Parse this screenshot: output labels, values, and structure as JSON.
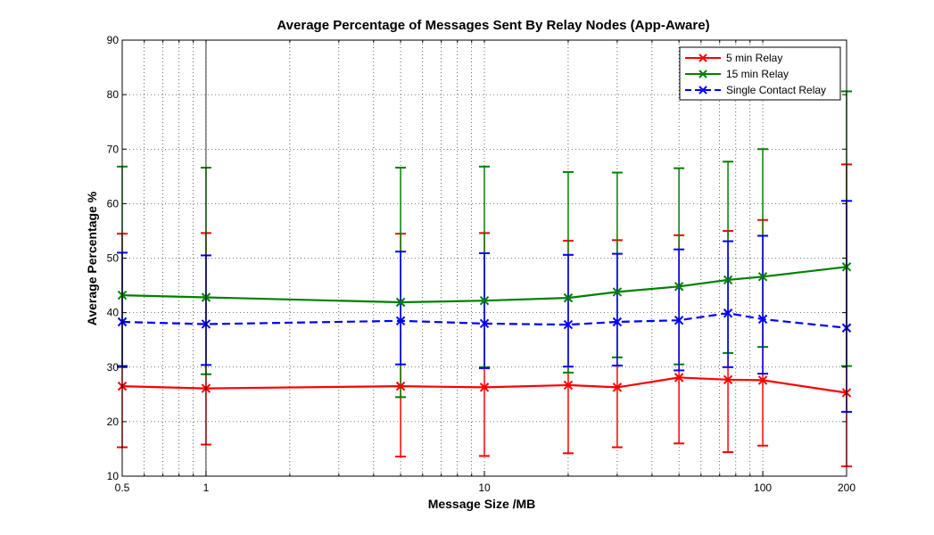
{
  "chart_data": {
    "type": "line",
    "title": "Average Percentage of Messages Sent By Relay Nodes (App-Aware)",
    "xlabel": "Message Size /MB",
    "ylabel": "Average Percentage %",
    "xscale": "log",
    "xlim": [
      0.5,
      200
    ],
    "ylim": [
      10,
      90
    ],
    "grid": "dotted",
    "legend_position": "top-right",
    "x_ticks": [
      0.5,
      1,
      10,
      100,
      200
    ],
    "x_tick_labels": [
      "0.5",
      "1",
      "10",
      "100",
      "200"
    ],
    "y_ticks": [
      10,
      20,
      30,
      40,
      50,
      60,
      70,
      80,
      90
    ],
    "y_tick_labels": [
      "10",
      "20",
      "30",
      "40",
      "50",
      "60",
      "70",
      "80",
      "90"
    ],
    "x": [
      0.5,
      1,
      5,
      10,
      20,
      30,
      50,
      75,
      100,
      200
    ],
    "series": [
      {
        "name": "5 min Relay",
        "color": "#ff0000",
        "line_style": "solid",
        "marker": "x",
        "values": [
          26.5,
          26.1,
          26.5,
          26.3,
          26.7,
          26.3,
          28.1,
          27.7,
          27.6,
          25.3
        ],
        "error_low": [
          15.3,
          15.8,
          13.6,
          13.7,
          14.2,
          15.3,
          16.0,
          14.4,
          15.6,
          11.8
        ],
        "error_high": [
          54.5,
          54.6,
          54.5,
          54.6,
          53.2,
          53.3,
          54.2,
          55.0,
          57.0,
          67.2
        ]
      },
      {
        "name": "15 min Relay",
        "color": "#008000",
        "line_style": "solid",
        "marker": "x",
        "values": [
          43.2,
          42.8,
          41.9,
          42.2,
          42.7,
          43.8,
          44.8,
          46.0,
          46.6,
          48.4
        ],
        "error_low": [
          30.0,
          28.7,
          24.5,
          30.0,
          29.0,
          31.8,
          30.5,
          32.6,
          33.7,
          30.2
        ],
        "error_high": [
          66.8,
          66.6,
          66.6,
          66.8,
          65.8,
          65.7,
          66.5,
          67.7,
          70.0,
          80.6
        ]
      },
      {
        "name": "Single Contact Relay",
        "color": "#0000ff",
        "line_style": "dashed",
        "marker": "x",
        "values": [
          38.3,
          37.9,
          38.5,
          38.0,
          37.8,
          38.3,
          38.6,
          39.9,
          38.8,
          37.2
        ],
        "error_low": [
          30.2,
          30.4,
          30.5,
          29.8,
          30.1,
          30.3,
          29.4,
          30.0,
          28.8,
          21.8
        ],
        "error_high": [
          51.0,
          50.5,
          51.2,
          50.9,
          50.6,
          50.8,
          51.6,
          53.1,
          54.1,
          60.5
        ]
      }
    ]
  }
}
